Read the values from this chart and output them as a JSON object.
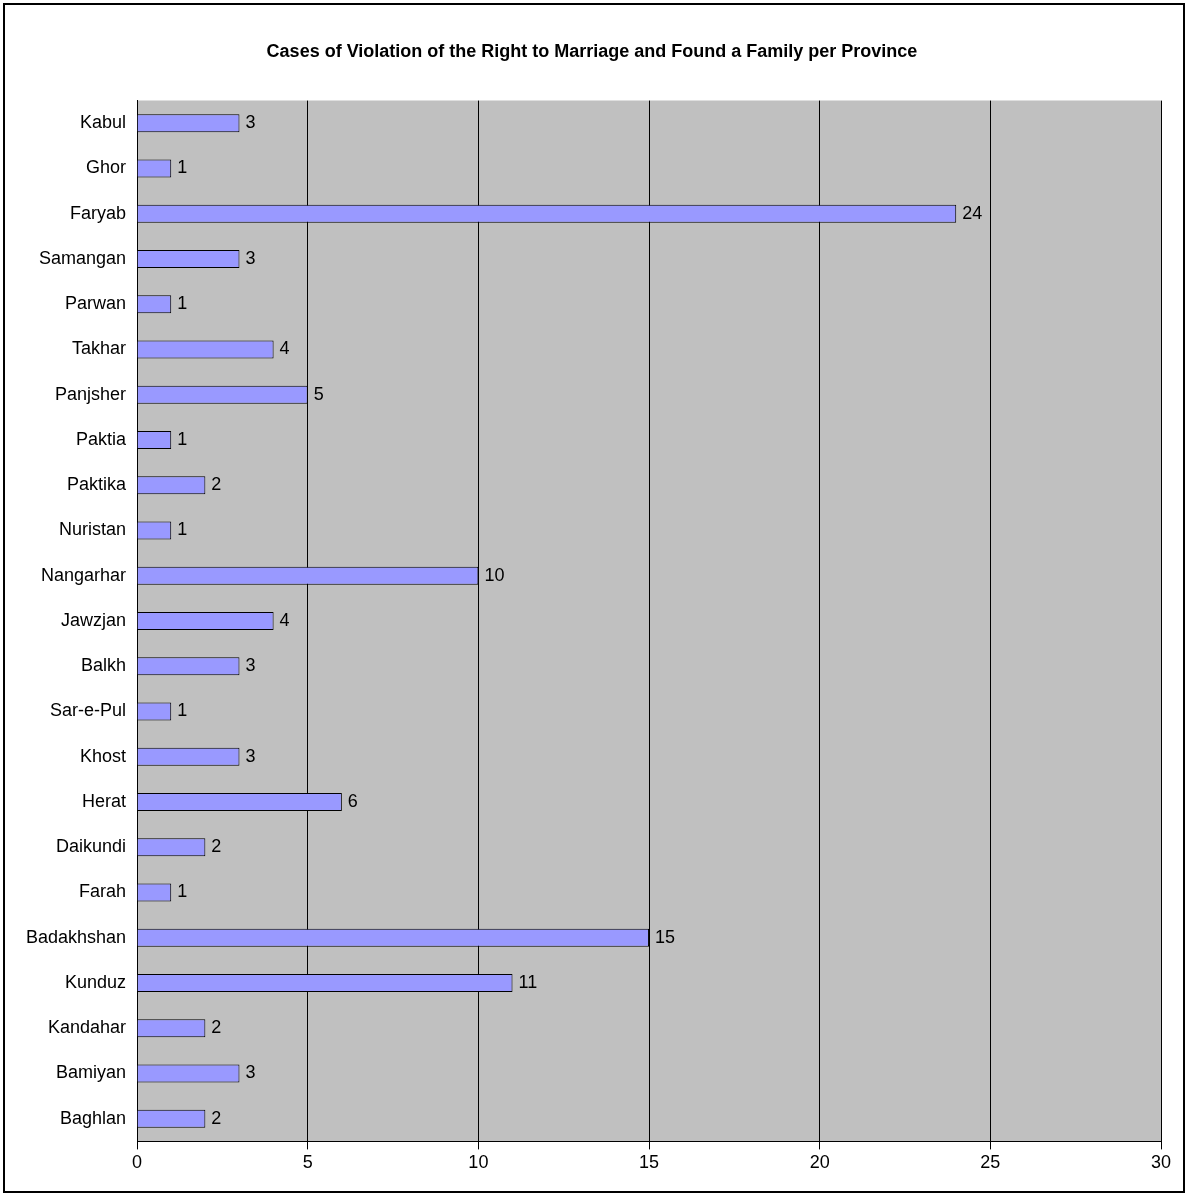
{
  "chart_data": {
    "type": "bar",
    "orientation": "horizontal",
    "title": "Cases of Violation of the Right to Marriage and Found a Family per Province",
    "categories": [
      "Kabul",
      "Ghor",
      "Faryab",
      "Samangan",
      "Parwan",
      "Takhar",
      "Panjsher",
      "Paktia",
      "Paktika",
      "Nuristan",
      "Nangarhar",
      "Jawzjan",
      "Balkh",
      "Sar-e-Pul",
      "Khost",
      "Herat",
      "Daikundi",
      "Farah",
      "Badakhshan",
      "Kunduz",
      "Kandahar",
      "Bamiyan",
      "Baghlan"
    ],
    "values": [
      3,
      1,
      24,
      3,
      1,
      4,
      5,
      1,
      2,
      1,
      10,
      4,
      3,
      1,
      3,
      6,
      2,
      1,
      15,
      11,
      2,
      3,
      2
    ],
    "color": "#9999ff",
    "xlim": [
      0,
      30
    ],
    "xticks": [
      0,
      5,
      10,
      15,
      20,
      25,
      30
    ],
    "grid": "x",
    "data_labels": true,
    "legend": false
  }
}
